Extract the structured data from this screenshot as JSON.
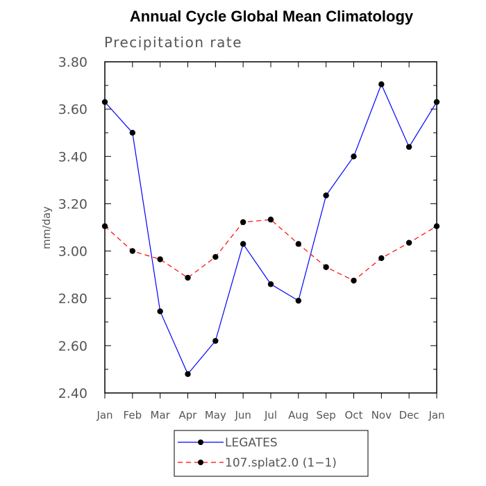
{
  "chart_data": {
    "type": "line",
    "title": "Annual Cycle Global Mean Climatology",
    "subtitle": "Precipitation rate",
    "xlabel": "",
    "ylabel": "mm/day",
    "categories": [
      "Jan",
      "Feb",
      "Mar",
      "Apr",
      "May",
      "Jun",
      "Jul",
      "Aug",
      "Sep",
      "Oct",
      "Nov",
      "Dec",
      "Jan"
    ],
    "ylim": [
      2.4,
      3.8
    ],
    "yticks": [
      "2.40",
      "2.60",
      "2.80",
      "3.00",
      "3.20",
      "3.40",
      "3.60",
      "3.80"
    ],
    "ytick_values": [
      2.4,
      2.6,
      2.8,
      3.0,
      3.2,
      3.4,
      3.6,
      3.8
    ],
    "grid": false,
    "legend_position": "bottom",
    "series": [
      {
        "name": "LEGATES",
        "color": "#0000ff",
        "style": "solid",
        "values": [
          3.63,
          3.5,
          2.745,
          2.48,
          2.62,
          3.03,
          2.86,
          2.79,
          3.235,
          3.4,
          3.705,
          3.44,
          3.63
        ]
      },
      {
        "name": "107.splat2.0 (1−1)",
        "color": "#ff0000",
        "style": "dashed",
        "values": [
          3.105,
          3.0,
          2.965,
          2.887,
          2.975,
          3.122,
          3.133,
          3.03,
          2.932,
          2.875,
          2.97,
          3.035,
          3.105
        ]
      }
    ]
  }
}
